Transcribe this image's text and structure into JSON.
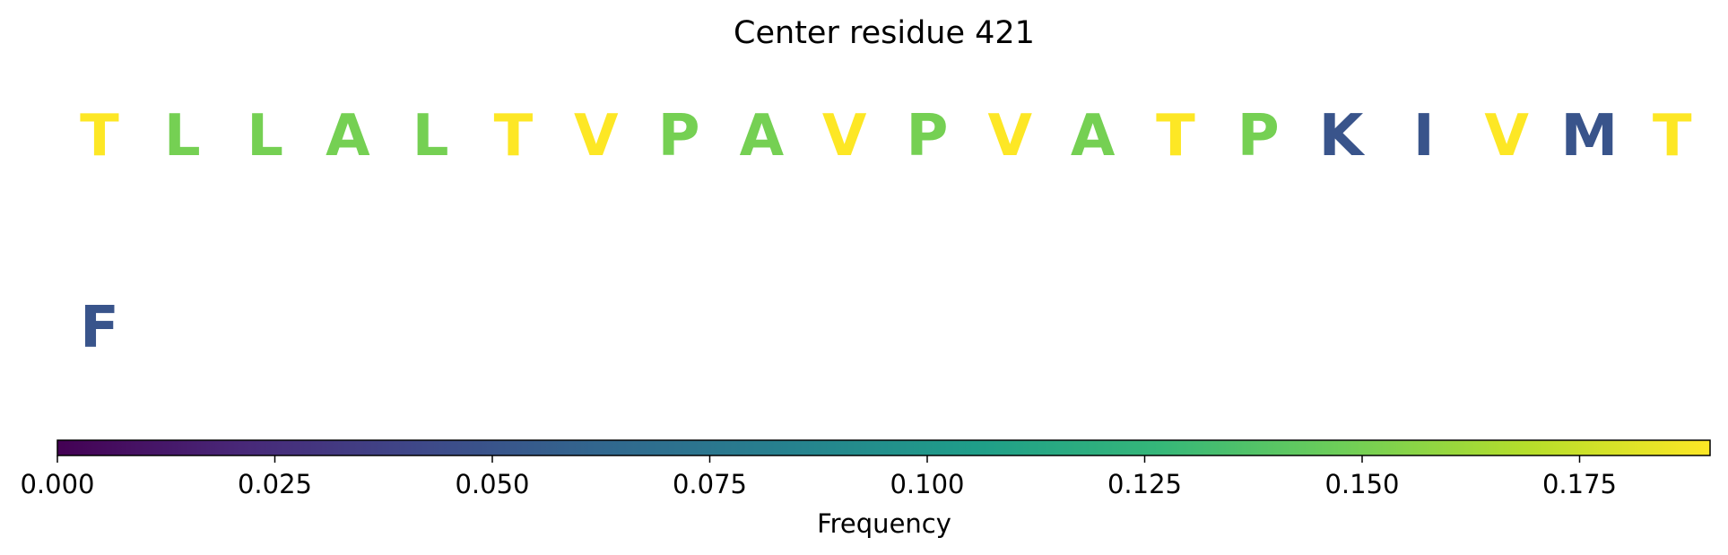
{
  "chart_data": {
    "type": "heatmap",
    "title": "Center residue 421",
    "rows": [
      {
        "residues": [
          "T",
          "L",
          "L",
          "A",
          "L",
          "T",
          "V",
          "P",
          "A",
          "V",
          "P",
          "V",
          "A",
          "T",
          "P",
          "K",
          "I",
          "V",
          "M",
          "T"
        ],
        "frequencies": [
          0.19,
          0.15,
          0.15,
          0.15,
          0.15,
          0.19,
          0.19,
          0.15,
          0.15,
          0.19,
          0.15,
          0.19,
          0.15,
          0.19,
          0.15,
          0.05,
          0.05,
          0.19,
          0.05,
          0.19
        ]
      },
      {
        "residues": [
          "F"
        ],
        "frequencies": [
          0.05
        ]
      }
    ],
    "colorbar": {
      "label": "Frequency",
      "range": [
        0.0,
        0.19
      ],
      "ticks": [
        0.0,
        0.025,
        0.05,
        0.075,
        0.1,
        0.125,
        0.15,
        0.175
      ],
      "tick_labels": [
        "0.000",
        "0.025",
        "0.050",
        "0.075",
        "0.100",
        "0.125",
        "0.150",
        "0.175"
      ],
      "colormap": "viridis",
      "colormap_stops": [
        "#440154",
        "#482878",
        "#3e4989",
        "#31688e",
        "#26828e",
        "#1f9e89",
        "#35b779",
        "#6ece58",
        "#b5de2b",
        "#fde725"
      ]
    }
  }
}
